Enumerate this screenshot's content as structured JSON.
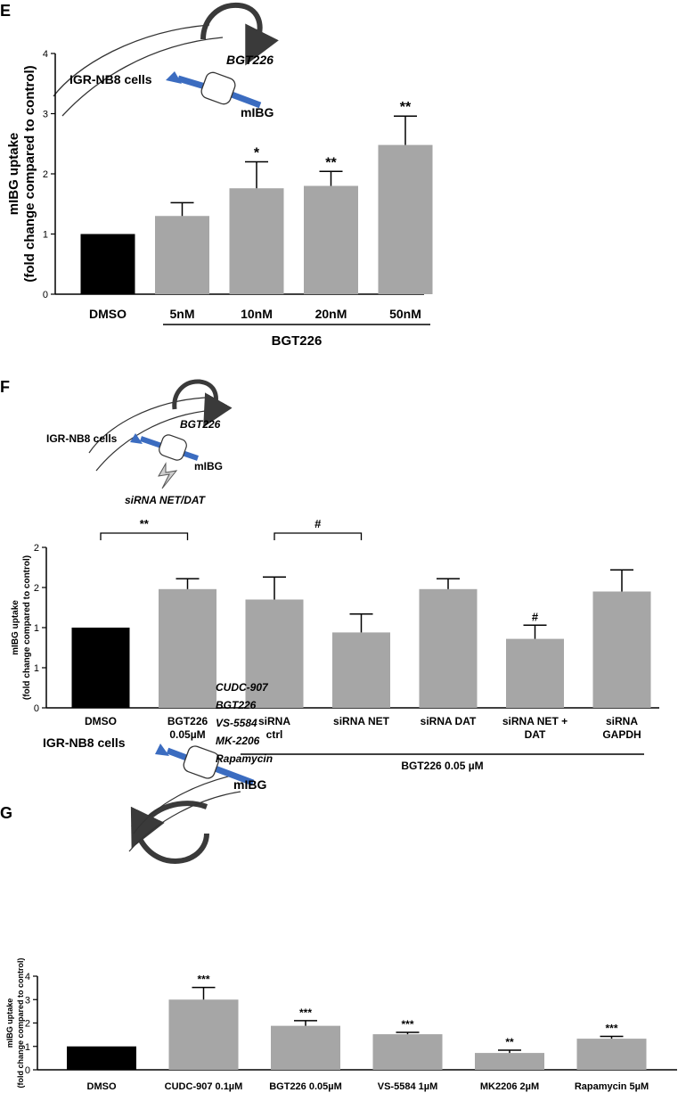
{
  "colors": {
    "control": "#000000",
    "treated": "#a6a6a6",
    "arrow": "#3b6cc0",
    "drug_arrow": "#3a3a3a"
  },
  "chart_data": [
    {
      "panel": "E",
      "type": "bar",
      "ylabel": [
        "mIBG uptake",
        "(fold change compared to control)"
      ],
      "ylim": [
        0,
        4
      ],
      "yticks": [
        "0",
        "1",
        "2",
        "3",
        "4"
      ],
      "categories": [
        "DMSO",
        "5nM",
        "10nM",
        "20nM",
        "50nM"
      ],
      "values": [
        1.0,
        1.3,
        1.76,
        1.8,
        2.48
      ],
      "errors": [
        0,
        0.22,
        0.44,
        0.24,
        0.48
      ],
      "significance": [
        "",
        "",
        "*",
        "**",
        "**"
      ],
      "group_label": "BGT226",
      "schematic": {
        "cell_label": "IGR-NB8 cells",
        "drug": "BGT226",
        "tracer": "mIBG"
      }
    },
    {
      "panel": "F",
      "type": "bar",
      "ylabel": [
        "mIBG uptake",
        "(fold change compared to control)"
      ],
      "ylim": [
        0,
        2
      ],
      "yticks": [
        "0",
        "1",
        "1",
        "2",
        "2"
      ],
      "categories": [
        [
          "DMSO"
        ],
        [
          "BGT226",
          "0.05µM"
        ],
        [
          "siRNA",
          "ctrl"
        ],
        [
          "siRNA NET"
        ],
        [
          "siRNA DAT"
        ],
        [
          "siRNA NET +",
          "DAT"
        ],
        [
          "siRNA",
          "GAPDH"
        ]
      ],
      "values": [
        1.0,
        1.48,
        1.35,
        0.94,
        1.48,
        0.86,
        1.45
      ],
      "errors": [
        0,
        0.13,
        0.28,
        0.23,
        0.13,
        0.17,
        0.27
      ],
      "significance": [
        "",
        "",
        "",
        "",
        "",
        "#",
        ""
      ],
      "brackets": [
        {
          "from": 0,
          "to": 1,
          "label": "**"
        },
        {
          "from": 2,
          "to": 3,
          "label": "#"
        }
      ],
      "group_label": "BGT226 0.05 µM",
      "schematic": {
        "cell_label": "IGR-NB8 cells",
        "drug": "BGT226",
        "tracer": "mIBG",
        "knockdown": "siRNA NET/DAT"
      }
    },
    {
      "panel": "G",
      "type": "bar",
      "ylabel": [
        "mIBG uptake",
        "(fold change compared to control)"
      ],
      "ylim": [
        0,
        4
      ],
      "yticks": [
        "0",
        "1",
        "2",
        "3",
        "4"
      ],
      "categories": [
        "DMSO",
        "CUDC-907 0.1µM",
        "BGT226 0.05µM",
        "VS-5584 1µM",
        "MK2206 2µM",
        "Rapamycin 5µM"
      ],
      "values": [
        1.0,
        3.0,
        1.88,
        1.52,
        0.72,
        1.33
      ],
      "errors": [
        0,
        0.52,
        0.22,
        0.08,
        0.12,
        0.1
      ],
      "significance": [
        "",
        "***",
        "***",
        "***",
        "**",
        "***"
      ],
      "schematic": {
        "cell_label": "IGR-NB8 cells",
        "drugs": [
          "CUDC-907",
          "BGT226",
          "VS-5584",
          "MK-2206",
          "Rapamycin"
        ],
        "tracer": "mIBG"
      }
    }
  ]
}
